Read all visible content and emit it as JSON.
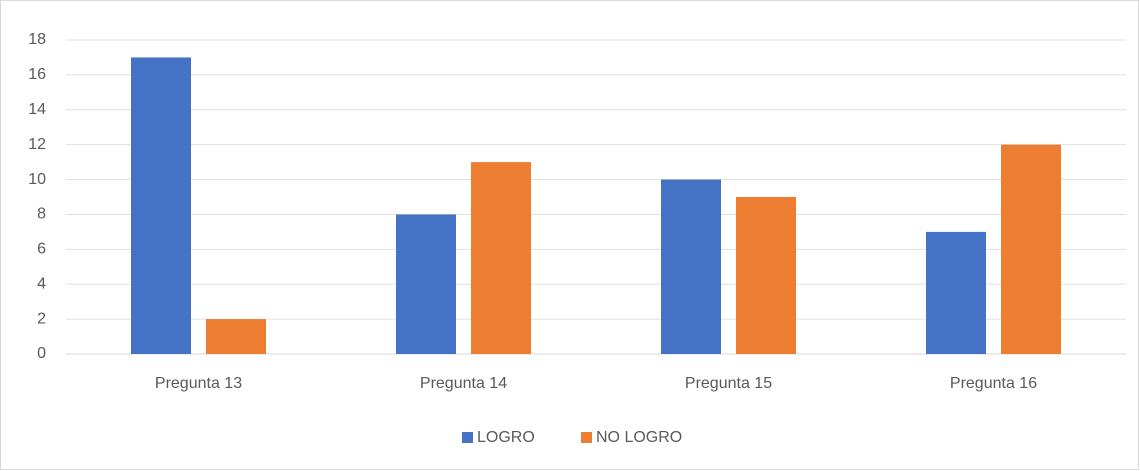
{
  "chart_data": {
    "type": "bar",
    "categories": [
      "Pregunta 13",
      "Pregunta 14",
      "Pregunta 15",
      "Pregunta 16"
    ],
    "series": [
      {
        "name": "LOGRO",
        "color": "#4472c4",
        "values": [
          17,
          8,
          10,
          7
        ]
      },
      {
        "name": "NO LOGRO",
        "color": "#ed7d31",
        "values": [
          2,
          11,
          9,
          12
        ]
      }
    ],
    "ylim": [
      0,
      18
    ],
    "yticks": [
      0,
      2,
      4,
      6,
      8,
      10,
      12,
      14,
      16,
      18
    ],
    "grid": true,
    "legend": "bottom"
  }
}
